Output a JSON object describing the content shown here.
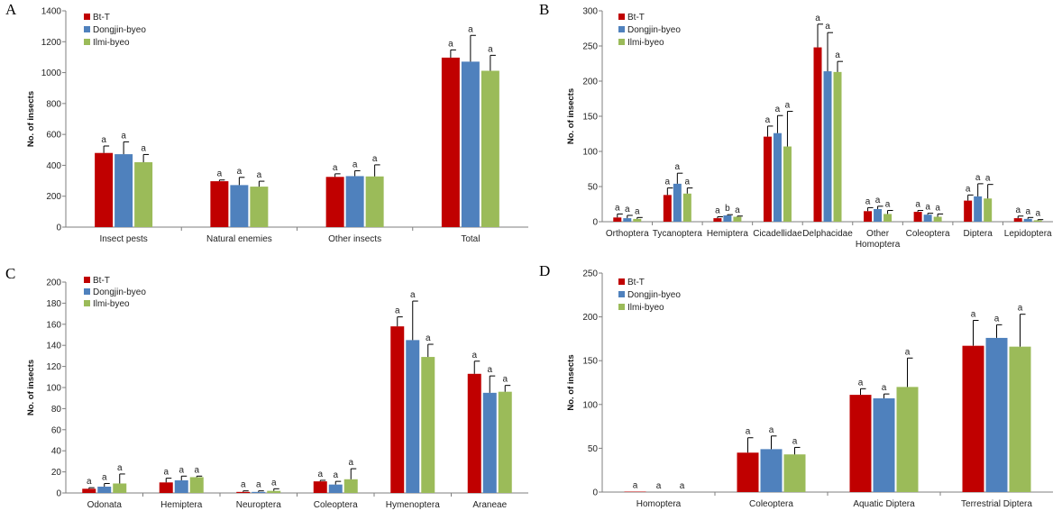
{
  "colors": {
    "series": [
      "#c00000",
      "#4f81bd",
      "#9bbb59"
    ]
  },
  "chart_data": [
    {
      "type": "bar",
      "panel_label": "A",
      "ylabel": "No. of insects",
      "ylim": [
        0,
        1400
      ],
      "yticks": [
        0,
        200,
        400,
        600,
        800,
        1000,
        1200,
        1400
      ],
      "legend_position": "top-left",
      "categories": [
        [
          "Insect pests"
        ],
        [
          "Natural enemies"
        ],
        [
          "Other insects"
        ],
        [
          "Total"
        ]
      ],
      "series": [
        {
          "name": "Bt-T",
          "values": [
            480,
            297,
            325,
            1097
          ],
          "errors": [
            45,
            8,
            20,
            50
          ],
          "letters": [
            "a",
            "a",
            "a",
            "a"
          ]
        },
        {
          "name": "Dongjin-byeo",
          "values": [
            472,
            272,
            330,
            1071
          ],
          "errors": [
            80,
            50,
            35,
            170
          ],
          "letters": [
            "a",
            "a",
            "a",
            "a"
          ]
        },
        {
          "name": "Ilmi-byeo",
          "values": [
            420,
            262,
            328,
            1012
          ],
          "errors": [
            50,
            35,
            75,
            100
          ],
          "letters": [
            "a",
            "a",
            "a",
            "a"
          ]
        }
      ]
    },
    {
      "type": "bar",
      "panel_label": "B",
      "ylabel": "No. of insects",
      "ylim": [
        0,
        300
      ],
      "yticks": [
        0,
        50,
        100,
        150,
        200,
        250,
        300
      ],
      "legend_position": "top-left",
      "categories": [
        [
          "Orthoptera"
        ],
        [
          "Tycanoptera"
        ],
        [
          "Hemiptera"
        ],
        [
          "Cicadellidae"
        ],
        [
          "Delphacidae"
        ],
        [
          "Other",
          "Homoptera"
        ],
        [
          "Coleoptera"
        ],
        [
          "Diptera"
        ],
        [
          "Lepidoptera"
        ]
      ],
      "series": [
        {
          "name": "Bt-T",
          "values": [
            6,
            38,
            5,
            121,
            248,
            15,
            14,
            30,
            5
          ],
          "errors": [
            5,
            10,
            2,
            15,
            33,
            5,
            2,
            8,
            3
          ],
          "letters": [
            "a",
            "a",
            "a",
            "a",
            "a",
            "a",
            "a",
            "a",
            "a"
          ]
        },
        {
          "name": "Dongjin-byeo",
          "values": [
            5,
            54,
            9,
            126,
            214,
            18,
            10,
            36,
            4
          ],
          "errors": [
            4,
            15,
            1,
            25,
            55,
            4,
            2,
            18,
            2
          ],
          "letters": [
            "a",
            "a",
            "b",
            "a",
            "a",
            "a",
            "a",
            "a",
            "a"
          ]
        },
        {
          "name": "Ilmi-byeo",
          "values": [
            4,
            40,
            7,
            107,
            213,
            11,
            7,
            33,
            2
          ],
          "errors": [
            2,
            8,
            1,
            50,
            15,
            5,
            4,
            20,
            1
          ],
          "letters": [
            "a",
            "a",
            "a",
            "a",
            "a",
            "a",
            "a",
            "a",
            "a"
          ]
        }
      ]
    },
    {
      "type": "bar",
      "panel_label": "C",
      "ylabel": "No. of insects",
      "ylim": [
        0,
        200
      ],
      "yticks": [
        0,
        20,
        40,
        60,
        80,
        100,
        120,
        140,
        160,
        180,
        200
      ],
      "legend_position": "top-left",
      "categories": [
        [
          "Odonata"
        ],
        [
          "Hemiptera"
        ],
        [
          "Neuroptera"
        ],
        [
          "Coleoptera"
        ],
        [
          "Hymenoptera"
        ],
        [
          "Araneae"
        ]
      ],
      "series": [
        {
          "name": "Bt-T",
          "values": [
            4,
            10,
            1,
            11,
            158,
            113
          ],
          "errors": [
            1,
            4,
            1,
            1,
            9,
            12
          ],
          "letters": [
            "a",
            "a",
            "a",
            "a",
            "a",
            "a"
          ]
        },
        {
          "name": "Dongjin-byeo",
          "values": [
            6,
            12,
            1,
            8,
            145,
            95
          ],
          "errors": [
            3,
            4,
            1,
            3,
            37,
            16
          ],
          "letters": [
            "a",
            "a",
            "a",
            "a",
            "a",
            "a"
          ]
        },
        {
          "name": "Ilmi-byeo",
          "values": [
            9,
            15,
            2,
            13,
            129,
            96
          ],
          "errors": [
            9,
            1,
            2,
            10,
            12,
            6
          ],
          "letters": [
            "a",
            "a",
            "a",
            "a",
            "a",
            "a"
          ]
        }
      ]
    },
    {
      "type": "bar",
      "panel_label": "D",
      "ylabel": "No. of insects",
      "ylim": [
        0,
        250
      ],
      "yticks": [
        0,
        50,
        100,
        150,
        200,
        250
      ],
      "legend_position": "top-left",
      "categories": [
        [
          "Homoptera"
        ],
        [
          "Coleoptera"
        ],
        [
          "Aquatic Diptera"
        ],
        [
          "Terrestrial Diptera"
        ]
      ],
      "series": [
        {
          "name": "Bt-T",
          "values": [
            0.5,
            45,
            111,
            167
          ],
          "errors": [
            0,
            17,
            7,
            29
          ],
          "letters": [
            "a",
            "a",
            "a",
            "a"
          ]
        },
        {
          "name": "Dongjin-byeo",
          "values": [
            0,
            49,
            107,
            176
          ],
          "errors": [
            0,
            15,
            5,
            15
          ],
          "letters": [
            "a",
            "a",
            "a",
            "a"
          ]
        },
        {
          "name": "Ilmi-byeo",
          "values": [
            0,
            43,
            120,
            166
          ],
          "errors": [
            0,
            8,
            33,
            37
          ],
          "letters": [
            "a",
            "a",
            "a",
            "a"
          ]
        }
      ]
    }
  ]
}
